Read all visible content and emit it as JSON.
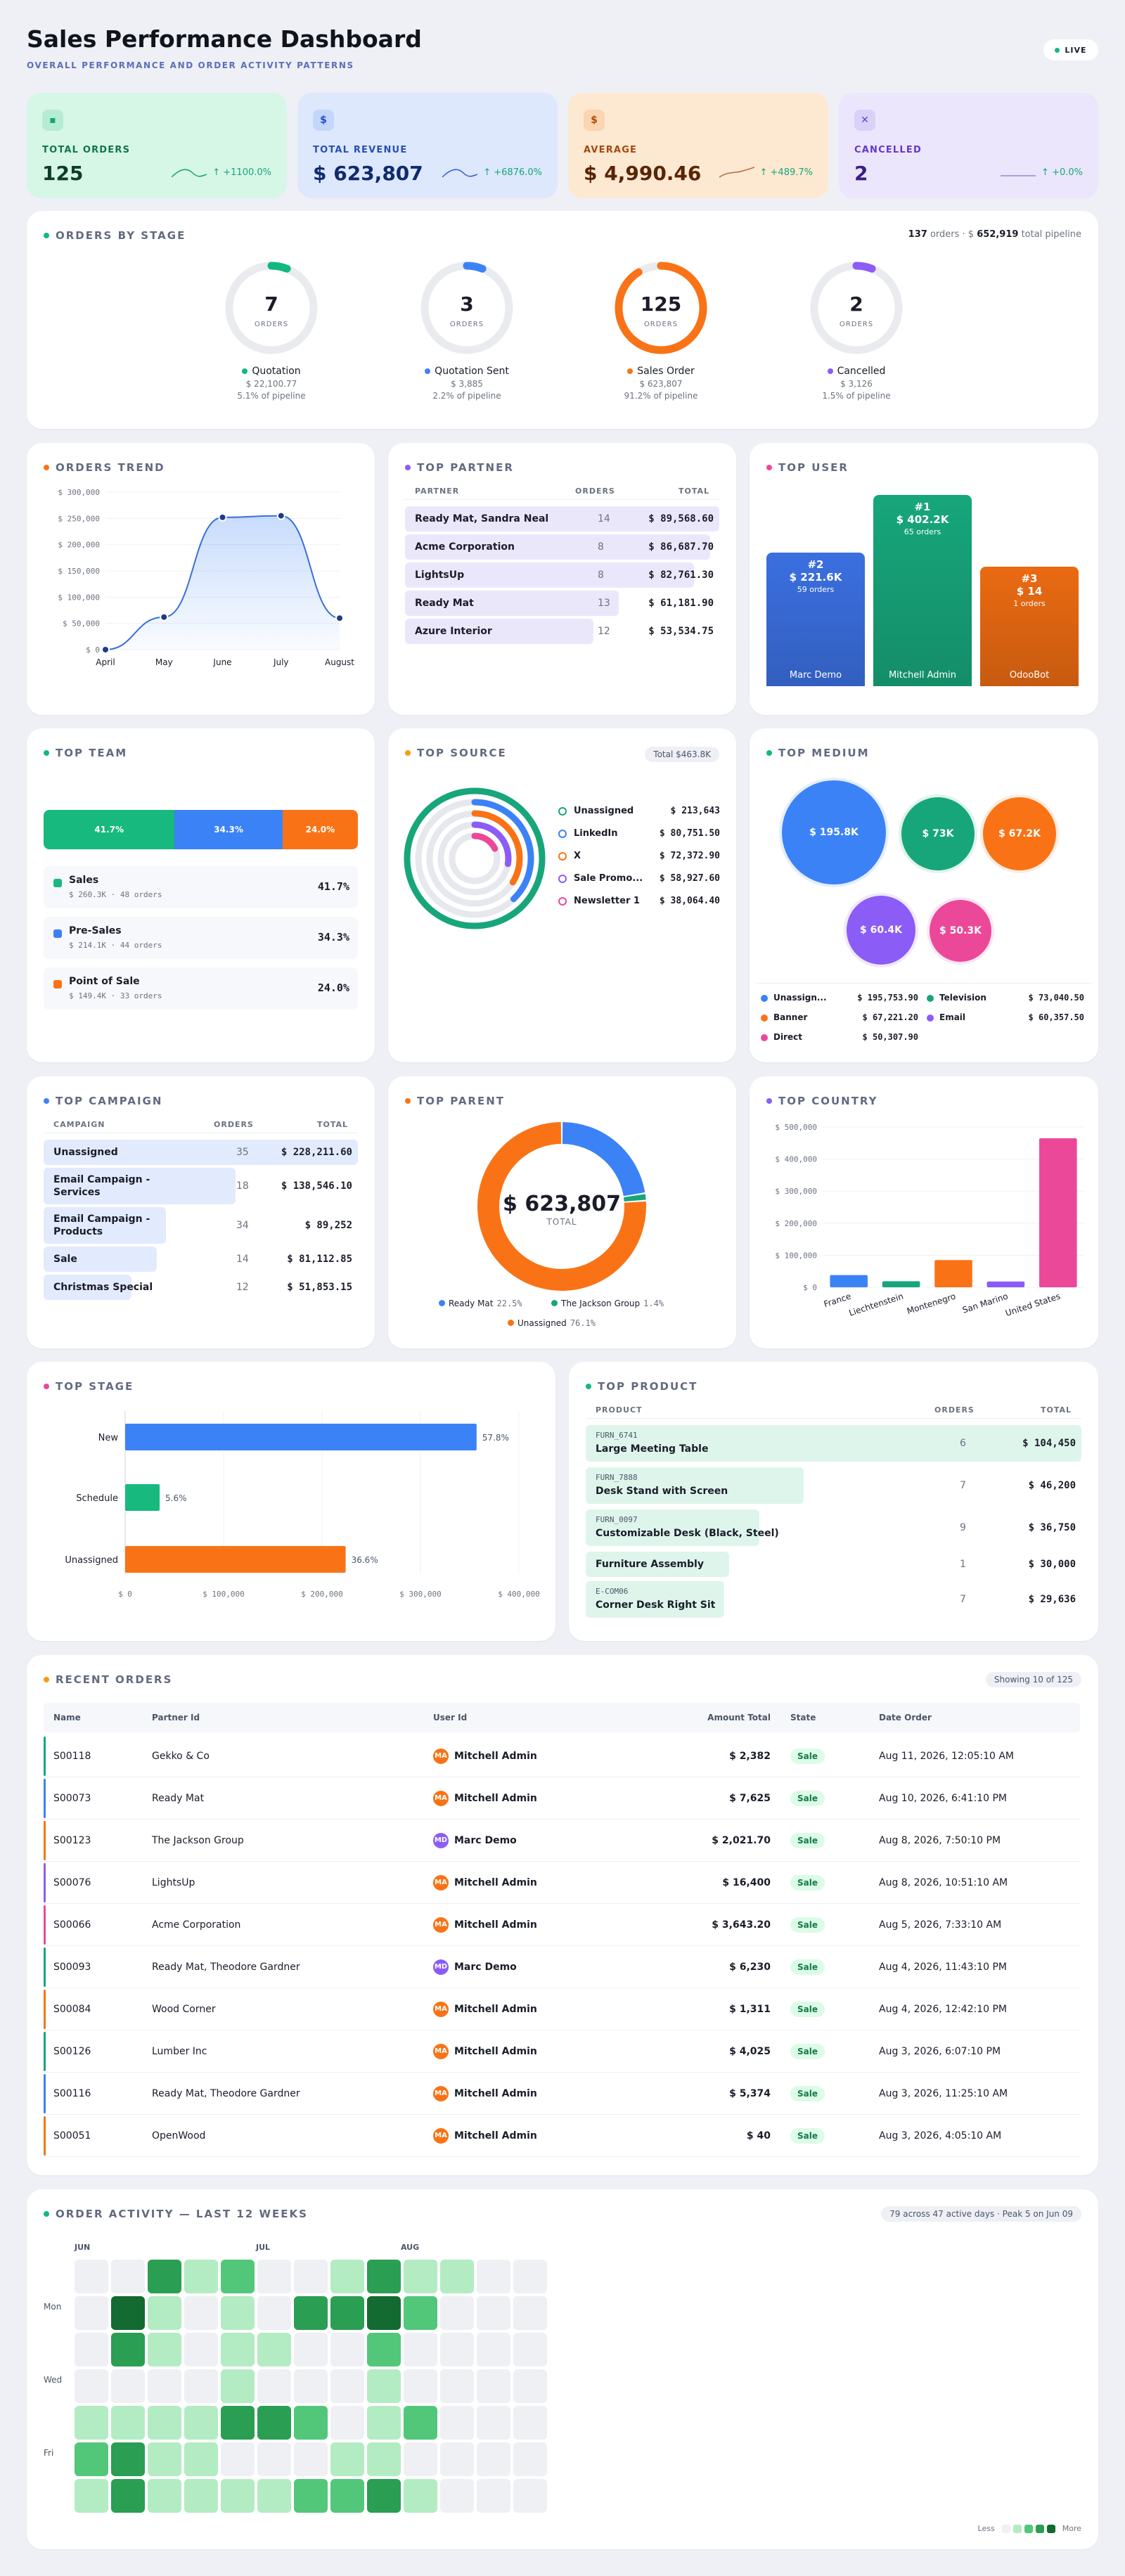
{
  "header": {
    "title": "Sales Performance Dashboard",
    "subtitle": "OVERALL PERFORMANCE AND ORDER ACTIVITY PATTERNS",
    "live": "LIVE"
  },
  "kpis": [
    {
      "icon": "chart-icon",
      "label": "TOTAL ORDERS",
      "value": "125",
      "trend": "↑ +1100.0%",
      "color": "#17a67a"
    },
    {
      "icon": "dollar-icon",
      "label": "TOTAL REVENUE",
      "value": "$ 623,807",
      "trend": "↑ +6876.0%",
      "color": "#3a5bd9"
    },
    {
      "icon": "dollar-icon",
      "label": "AVERAGE",
      "value": "$ 4,990.46",
      "trend": "↑ +489.7%",
      "color": "#c2410c"
    },
    {
      "icon": "close-icon",
      "label": "CANCELLED",
      "value": "2",
      "trend": "↑ +0.0%",
      "color": "#7c3aed"
    }
  ],
  "stages": {
    "title": "ORDERS BY STAGE",
    "summary_count": "137",
    "summary_mid": "orders · $",
    "summary_total": "652,919",
    "summary_end": "total pipeline",
    "items": [
      {
        "value": "7",
        "unit": "ORDERS",
        "label": "Quotation",
        "amount": "$ 22,100.77",
        "pct": "5.1% of pipeline",
        "share": 0.051,
        "color": "#10b981"
      },
      {
        "value": "3",
        "unit": "ORDERS",
        "label": "Quotation Sent",
        "amount": "$ 3,885",
        "pct": "2.2% of pipeline",
        "share": 0.022,
        "color": "#3b82f6"
      },
      {
        "value": "125",
        "unit": "ORDERS",
        "label": "Sales Order",
        "amount": "$ 623,807",
        "pct": "91.2% of pipeline",
        "share": 0.912,
        "color": "#f97316"
      },
      {
        "value": "2",
        "unit": "ORDERS",
        "label": "Cancelled",
        "amount": "$ 3,126",
        "pct": "1.5% of pipeline",
        "share": 0.015,
        "color": "#8b5cf6"
      }
    ]
  },
  "orders_trend": {
    "title": "ORDERS TREND"
  },
  "top_partner": {
    "title": "TOP PARTNER",
    "col_partner": "PARTNER",
    "col_orders": "ORDERS",
    "col_total": "TOTAL",
    "rows": [
      {
        "name": "Ready Mat, Sandra Neal",
        "orders": "14",
        "total": "$ 89,568.60",
        "share": 1.0
      },
      {
        "name": "Acme Corporation",
        "orders": "8",
        "total": "$ 86,687.70",
        "share": 0.97
      },
      {
        "name": "LightsUp",
        "orders": "8",
        "total": "$ 82,761.30",
        "share": 0.92
      },
      {
        "name": "Ready Mat",
        "orders": "13",
        "total": "$ 61,181.90",
        "share": 0.68
      },
      {
        "name": "Azure Interior",
        "orders": "12",
        "total": "$ 53,534.75",
        "share": 0.6
      }
    ]
  },
  "top_user": {
    "title": "TOP USER",
    "users": [
      {
        "rank": "#2",
        "amount": "$ 221.6K",
        "orders": "59 orders",
        "name": "Marc Demo",
        "color": "#3b6fe0",
        "value": 221.6
      },
      {
        "rank": "#1",
        "amount": "$ 402.2K",
        "orders": "65 orders",
        "name": "Mitchell Admin",
        "color": "#17a67a",
        "value": 402.2
      },
      {
        "rank": "#3",
        "amount": "$ 14",
        "orders": "1 orders",
        "name": "OdooBot",
        "color": "#ea6a12",
        "value": 0.014
      }
    ]
  },
  "top_team": {
    "title": "TOP TEAM",
    "bar": [
      {
        "pct": "41.7%",
        "share": 0.417,
        "color": "#17b97f"
      },
      {
        "pct": "34.3%",
        "share": 0.343,
        "color": "#3b82f6"
      },
      {
        "pct": "24.0%",
        "share": 0.24,
        "color": "#f97316"
      }
    ],
    "items": [
      {
        "name": "Sales",
        "meta": "$ 260.3K · 48 orders",
        "pct": "41.7%",
        "color": "#17b97f"
      },
      {
        "name": "Pre-Sales",
        "meta": "$ 214.1K · 44 orders",
        "pct": "34.3%",
        "color": "#3b82f6"
      },
      {
        "name": "Point of Sale",
        "meta": "$ 149.4K · 33 orders",
        "pct": "24.0%",
        "color": "#f97316"
      }
    ]
  },
  "top_source": {
    "title": "TOP SOURCE",
    "badge": "Total $463.8K",
    "items": [
      {
        "name": "Unassigned",
        "value": "$ 213,643",
        "color": "#17a67a",
        "share": 0.46
      },
      {
        "name": "LinkedIn",
        "value": "$ 80,751.50",
        "color": "#3b82f6",
        "share": 0.174
      },
      {
        "name": "X",
        "value": "$ 72,372.90",
        "color": "#f97316",
        "share": 0.156
      },
      {
        "name": "Sale Promo...",
        "value": "$ 58,927.60",
        "color": "#8b5cf6",
        "share": 0.127
      },
      {
        "name": "Newsletter 1",
        "value": "$ 38,064.40",
        "color": "#ec4899",
        "share": 0.082
      }
    ]
  },
  "top_medium": {
    "title": "TOP MEDIUM",
    "bubbles": [
      {
        "label": "$ 195.8K",
        "color": "#3b82f6"
      },
      {
        "label": "$ 73K",
        "color": "#17a67a"
      },
      {
        "label": "$ 67.2K",
        "color": "#f97316"
      },
      {
        "label": "$ 60.4K",
        "color": "#8b5cf6"
      },
      {
        "label": "$ 50.3K",
        "color": "#ec4899"
      }
    ],
    "legend": [
      {
        "name": "Unassign...",
        "value": "$ 195,753.90",
        "color": "#3b82f6"
      },
      {
        "name": "Television",
        "value": "$ 73,040.50",
        "color": "#17a67a"
      },
      {
        "name": "Banner",
        "value": "$ 67,221.20",
        "color": "#f97316"
      },
      {
        "name": "Email",
        "value": "$ 60,357.50",
        "color": "#8b5cf6"
      },
      {
        "name": "Direct",
        "value": "$ 50,307.90",
        "color": "#ec4899"
      }
    ]
  },
  "top_campaign": {
    "title": "TOP CAMPAIGN",
    "col_campaign": "CAMPAIGN",
    "col_orders": "ORDERS",
    "col_total": "TOTAL",
    "rows": [
      {
        "name": "Unassigned",
        "orders": "35",
        "total": "$ 228,211.60",
        "share": 1.0
      },
      {
        "name": "Email Campaign - Services",
        "orders": "18",
        "total": "$ 138,546.10",
        "share": 0.61
      },
      {
        "name": "Email Campaign - Products",
        "orders": "34",
        "total": "$ 89,252",
        "share": 0.39
      },
      {
        "name": "Sale",
        "orders": "14",
        "total": "$ 81,112.85",
        "share": 0.36
      },
      {
        "name": "Christmas Special",
        "orders": "12",
        "total": "$ 51,853.15",
        "share": 0.23
      }
    ]
  },
  "top_parent": {
    "title": "TOP PARENT",
    "center_value": "$ 623,807",
    "center_label": "TOTAL",
    "items": [
      {
        "name": "Ready Mat",
        "pct": "22.5%",
        "share": 0.225,
        "color": "#3b82f6"
      },
      {
        "name": "The Jackson Group",
        "pct": "1.4%",
        "share": 0.014,
        "color": "#17a67a"
      },
      {
        "name": "Unassigned",
        "pct": "76.1%",
        "share": 0.761,
        "color": "#f97316"
      }
    ]
  },
  "top_stage": {
    "title": "TOP STAGE"
  },
  "top_product": {
    "title": "TOP PRODUCT",
    "col_product": "PRODUCT",
    "col_orders": "ORDERS",
    "col_total": "TOTAL",
    "rows": [
      {
        "code": "FURN_6741",
        "name": "Large Meeting Table",
        "orders": "6",
        "total": "$ 104,450",
        "share": 1.0
      },
      {
        "code": "FURN_7888",
        "name": "Desk Stand with Screen",
        "orders": "7",
        "total": "$ 46,200",
        "share": 0.44
      },
      {
        "code": "FURN_0097",
        "name": "Customizable Desk (Black, Steel)",
        "orders": "9",
        "total": "$ 36,750",
        "share": 0.35
      },
      {
        "code": "",
        "name": "Furniture Assembly",
        "orders": "1",
        "total": "$ 30,000",
        "share": 0.29
      },
      {
        "code": "E-COM06",
        "name": "Corner Desk Right Sit",
        "orders": "7",
        "total": "$ 29,636",
        "share": 0.28
      }
    ]
  },
  "recent": {
    "title": "RECENT ORDERS",
    "badge": "Showing 10 of 125",
    "cols": {
      "name": "Name",
      "partner": "Partner Id",
      "user": "User Id",
      "amount": "Amount Total",
      "state": "State",
      "date": "Date Order"
    },
    "rows": [
      {
        "name": "S00118",
        "partner": "Gekko & Co",
        "initials": "MA",
        "user": "Mitchell Admin",
        "amount": "$ 2,382",
        "state": "Sale",
        "date": "Aug 11, 2026, 12:05:10 AM",
        "accent": "#17a67a",
        "avatar": "#f97316"
      },
      {
        "name": "S00073",
        "partner": "Ready Mat",
        "initials": "MA",
        "user": "Mitchell Admin",
        "amount": "$ 7,625",
        "state": "Sale",
        "date": "Aug 10, 2026, 6:41:10 PM",
        "accent": "#3b82f6",
        "avatar": "#f97316"
      },
      {
        "name": "S00123",
        "partner": "The Jackson Group",
        "initials": "MD",
        "user": "Marc Demo",
        "amount": "$ 2,021.70",
        "state": "Sale",
        "date": "Aug 8, 2026, 7:50:10 PM",
        "accent": "#f97316",
        "avatar": "#8b5cf6"
      },
      {
        "name": "S00076",
        "partner": "LightsUp",
        "initials": "MA",
        "user": "Mitchell Admin",
        "amount": "$ 16,400",
        "state": "Sale",
        "date": "Aug 8, 2026, 10:51:10 AM",
        "accent": "#8b5cf6",
        "avatar": "#f97316"
      },
      {
        "name": "S00066",
        "partner": "Acme Corporation",
        "initials": "MA",
        "user": "Mitchell Admin",
        "amount": "$ 3,643.20",
        "state": "Sale",
        "date": "Aug 5, 2026, 7:33:10 AM",
        "accent": "#ec4899",
        "avatar": "#f97316"
      },
      {
        "name": "S00093",
        "partner": "Ready Mat, Theodore Gardner",
        "initials": "MD",
        "user": "Marc Demo",
        "amount": "$ 6,230",
        "state": "Sale",
        "date": "Aug 4, 2026, 11:43:10 PM",
        "accent": "#17a67a",
        "avatar": "#8b5cf6"
      },
      {
        "name": "S00084",
        "partner": "Wood Corner",
        "initials": "MA",
        "user": "Mitchell Admin",
        "amount": "$ 1,311",
        "state": "Sale",
        "date": "Aug 4, 2026, 12:42:10 PM",
        "accent": "#f97316",
        "avatar": "#f97316"
      },
      {
        "name": "S00126",
        "partner": "Lumber Inc",
        "initials": "MA",
        "user": "Mitchell Admin",
        "amount": "$ 4,025",
        "state": "Sale",
        "date": "Aug 3, 2026, 6:07:10 PM",
        "accent": "#17a67a",
        "avatar": "#f97316"
      },
      {
        "name": "S00116",
        "partner": "Ready Mat, Theodore Gardner",
        "initials": "MA",
        "user": "Mitchell Admin",
        "amount": "$ 5,374",
        "state": "Sale",
        "date": "Aug 3, 2026, 11:25:10 AM",
        "accent": "#3b82f6",
        "avatar": "#f97316"
      },
      {
        "name": "S00051",
        "partner": "OpenWood",
        "initials": "MA",
        "user": "Mitchell Admin",
        "amount": "$ 40",
        "state": "Sale",
        "date": "Aug 3, 2026, 4:05:10 AM",
        "accent": "#f97316",
        "avatar": "#f97316"
      }
    ]
  },
  "activity": {
    "title": "ORDER ACTIVITY — LAST 12 WEEKS",
    "badge": "79 across 47 active days · Peak 5 on Jun 09",
    "months": [
      "JUN",
      "JUL",
      "AUG"
    ],
    "days": [
      "Mon",
      "Wed",
      "Fri"
    ],
    "legend_less": "Less",
    "legend_more": "More",
    "levels": [
      [
        0,
        0,
        3,
        1,
        2,
        0,
        0,
        1,
        3,
        1,
        1,
        0,
        0
      ],
      [
        0,
        4,
        1,
        0,
        1,
        0,
        3,
        3,
        4,
        2,
        0,
        0,
        0
      ],
      [
        0,
        3,
        1,
        0,
        1,
        1,
        0,
        0,
        2,
        0,
        0,
        0,
        0
      ],
      [
        0,
        0,
        0,
        0,
        1,
        0,
        0,
        0,
        1,
        0,
        0,
        0,
        0
      ],
      [
        1,
        1,
        1,
        1,
        3,
        3,
        2,
        0,
        1,
        2,
        0,
        0,
        0
      ],
      [
        2,
        3,
        1,
        1,
        0,
        0,
        0,
        1,
        1,
        0,
        0,
        0,
        0
      ],
      [
        1,
        3,
        1,
        1,
        1,
        1,
        2,
        2,
        3,
        1,
        0,
        0,
        0
      ]
    ]
  },
  "charts": [
    {
      "id": "orders_trend",
      "chart_data": {
        "type": "area",
        "x": [
          "April",
          "May",
          "June",
          "July",
          "August"
        ],
        "values": [
          0,
          62000,
          252000,
          255000,
          60000
        ],
        "ylim": [
          0,
          300000
        ],
        "yticks": [
          "$ 0",
          "$ 50,000",
          "$ 100,000",
          "$ 150,000",
          "$ 200,000",
          "$ 250,000",
          "$ 300,000"
        ]
      }
    },
    {
      "id": "top_country",
      "chart_data": {
        "type": "bar",
        "categories": [
          "France",
          "Liechtenstein",
          "Montenegro",
          "San Marino",
          "United States"
        ],
        "values": [
          38000,
          19000,
          85000,
          18000,
          465000
        ],
        "ylim": [
          0,
          500000
        ],
        "yticks": [
          "$ 0",
          "$ 100,000",
          "$ 200,000",
          "$ 300,000",
          "$ 400,000",
          "$ 500,000"
        ],
        "colors": [
          "#3b82f6",
          "#17a67a",
          "#f97316",
          "#8b5cf6",
          "#ec4899"
        ]
      }
    },
    {
      "id": "top_stage",
      "chart_data": {
        "type": "bar",
        "orientation": "horizontal",
        "categories": [
          "New",
          "Schedule",
          "Unassigned"
        ],
        "values": [
          357000,
          35000,
          224000
        ],
        "labels": [
          "57.8%",
          "5.6%",
          "36.6%"
        ],
        "xlim": [
          0,
          400000
        ],
        "xticks": [
          "$ 0",
          "$ 100,000",
          "$ 200,000",
          "$ 300,000",
          "$ 400,000"
        ],
        "colors": [
          "#3b82f6",
          "#17b97f",
          "#f97316"
        ]
      }
    }
  ]
}
